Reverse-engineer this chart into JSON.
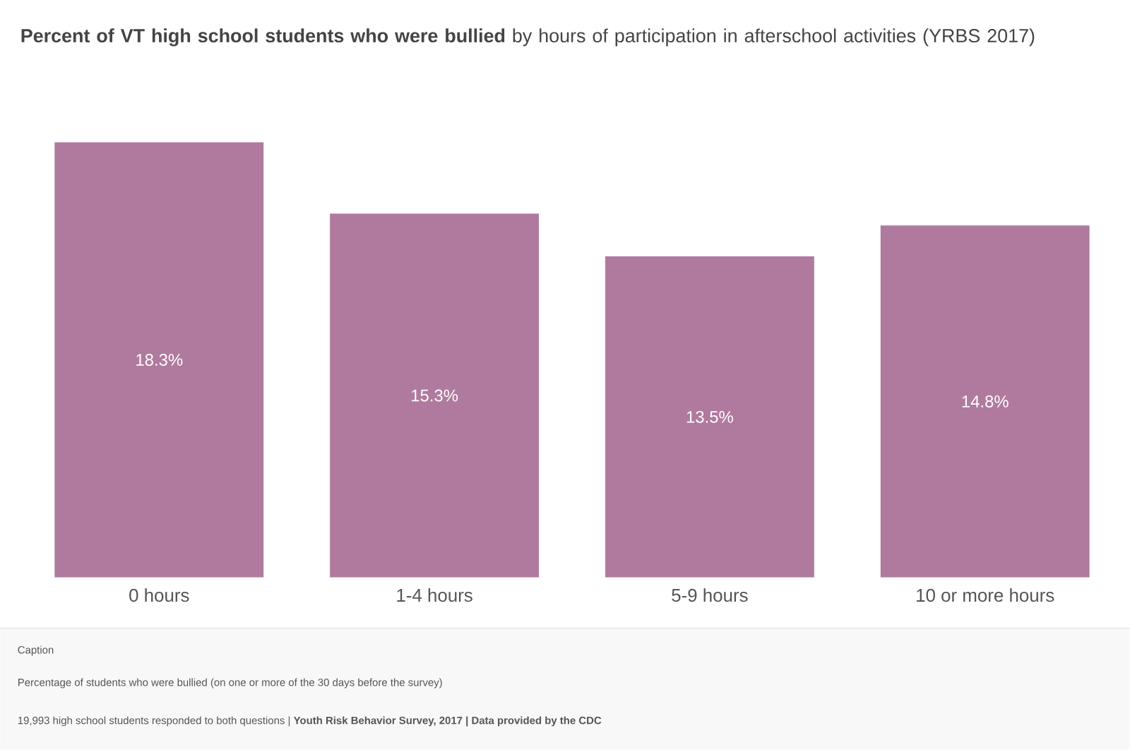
{
  "chart_data": {
    "type": "bar",
    "title": "**Percent of VT high school students who were bullied** by hours of participation in afterschool activities (YRBS 2017)",
    "categories": [
      "0 hours",
      "1-4 hours",
      "5-9 hours",
      "10 or more hours"
    ],
    "values": [
      18.3,
      15.3,
      13.5,
      14.8
    ],
    "value_labels": [
      "18.3%",
      "15.3%",
      "13.5%",
      "14.8%"
    ],
    "color": "#b07a9e",
    "annotations": [
      "Caption",
      "Percentage of students who were bullied (on one or more of the 30 days before the survey)",
      "19,993 high school students responded to both questions | **Youth Risk Behavior Survey, 2017 | Data provided by the CDC**"
    ]
  }
}
